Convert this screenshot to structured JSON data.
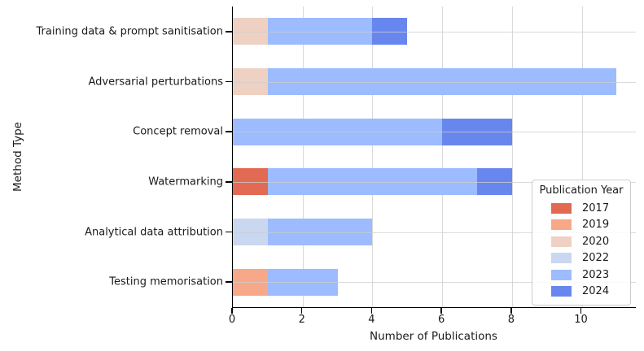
{
  "figure": {
    "background": "#ffffff",
    "spine_color": "#000000",
    "grid_color": "#d9d9d9",
    "text_color": "#1a1a1a"
  },
  "chart_data": {
    "type": "bar",
    "orientation": "horizontal",
    "stacked": true,
    "title": "",
    "xlabel": "Number of Publications",
    "ylabel": "Method Type",
    "categories": [
      "Training data & prompt sanitisation",
      "Adversarial perturbations",
      "Concept removal",
      "Watermarking",
      "Analytical data attribution",
      "Testing memorisation"
    ],
    "series": [
      {
        "name": "2017",
        "color": "#e26952",
        "values": [
          0,
          0,
          0,
          1,
          0,
          0
        ]
      },
      {
        "name": "2019",
        "color": "#f7a889",
        "values": [
          0,
          0,
          0,
          0,
          0,
          1
        ]
      },
      {
        "name": "2020",
        "color": "#eed1c2",
        "values": [
          1,
          1,
          0,
          0,
          0,
          0
        ]
      },
      {
        "name": "2022",
        "color": "#c9d7f0",
        "values": [
          0,
          0,
          0,
          0,
          1,
          0
        ]
      },
      {
        "name": "2023",
        "color": "#9dbbff",
        "values": [
          3,
          10,
          6,
          6,
          3,
          2
        ]
      },
      {
        "name": "2024",
        "color": "#6787ee",
        "values": [
          1,
          0,
          2,
          1,
          0,
          0
        ]
      }
    ],
    "category_totals": [
      5,
      11,
      8,
      8,
      4,
      3
    ],
    "xticks": [
      0,
      2,
      4,
      6,
      8,
      10
    ],
    "xlim": [
      0,
      11.55
    ],
    "grid": true,
    "legend": {
      "title": "Publication Year",
      "position": "center-right",
      "entries": [
        "2017",
        "2019",
        "2020",
        "2022",
        "2023",
        "2024"
      ]
    }
  }
}
